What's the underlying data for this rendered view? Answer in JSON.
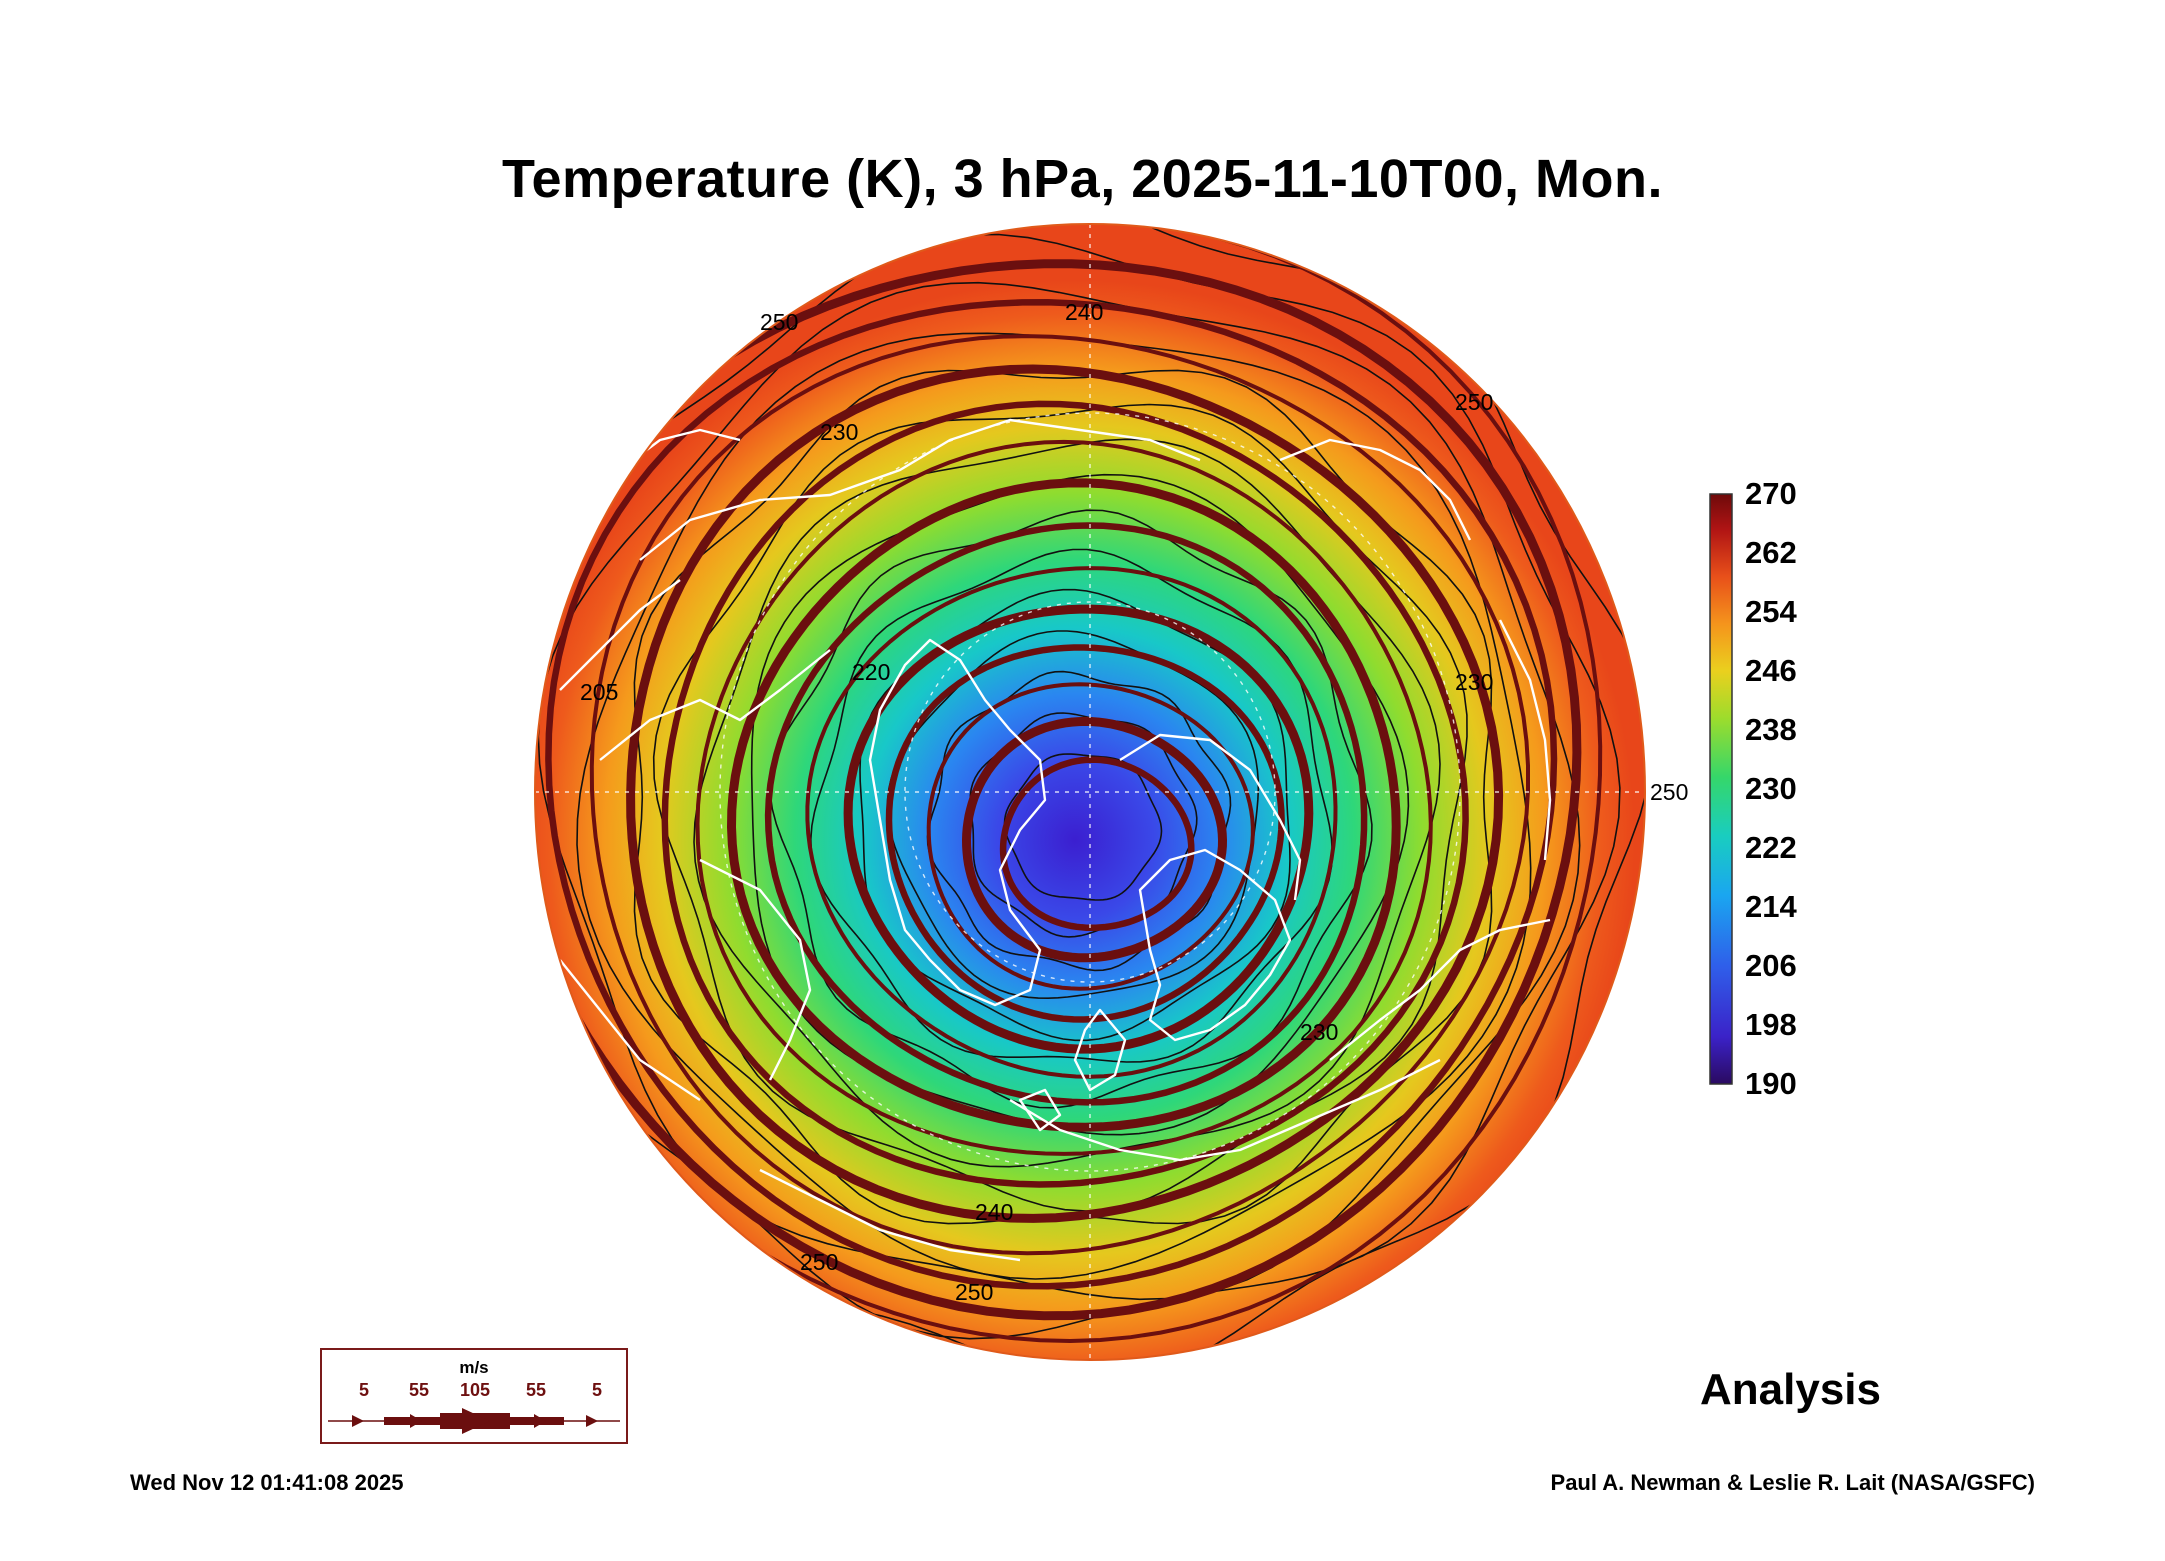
{
  "title": "Temperature (K), 3 hPa, 2025-11-10T00, Mon.",
  "colorbar": {
    "labels": [
      "270",
      "262",
      "254",
      "246",
      "238",
      "230",
      "222",
      "214",
      "206",
      "198",
      "190"
    ],
    "min": 190,
    "max": 270
  },
  "contour_labels": [
    "250",
    "240",
    "230",
    "250",
    "205",
    "220",
    "230",
    "250",
    "240",
    "250",
    "250",
    "230"
  ],
  "wind_legend": {
    "unit": "m/s",
    "speeds": [
      "5",
      "55",
      "105",
      "55",
      "5"
    ]
  },
  "analysis_label": "Analysis",
  "timestamp": "Wed Nov 12 01:41:08 2025",
  "credit": "Paul A. Newman & Leslie R. Lait (NASA/GSFC)",
  "colors": {
    "wind_streamline": "#6b0f0f",
    "coastline": "#ffffff",
    "contour": "#111111",
    "cold_core": "#3a2bd6",
    "warm_rim": "#ec5a1c"
  }
}
